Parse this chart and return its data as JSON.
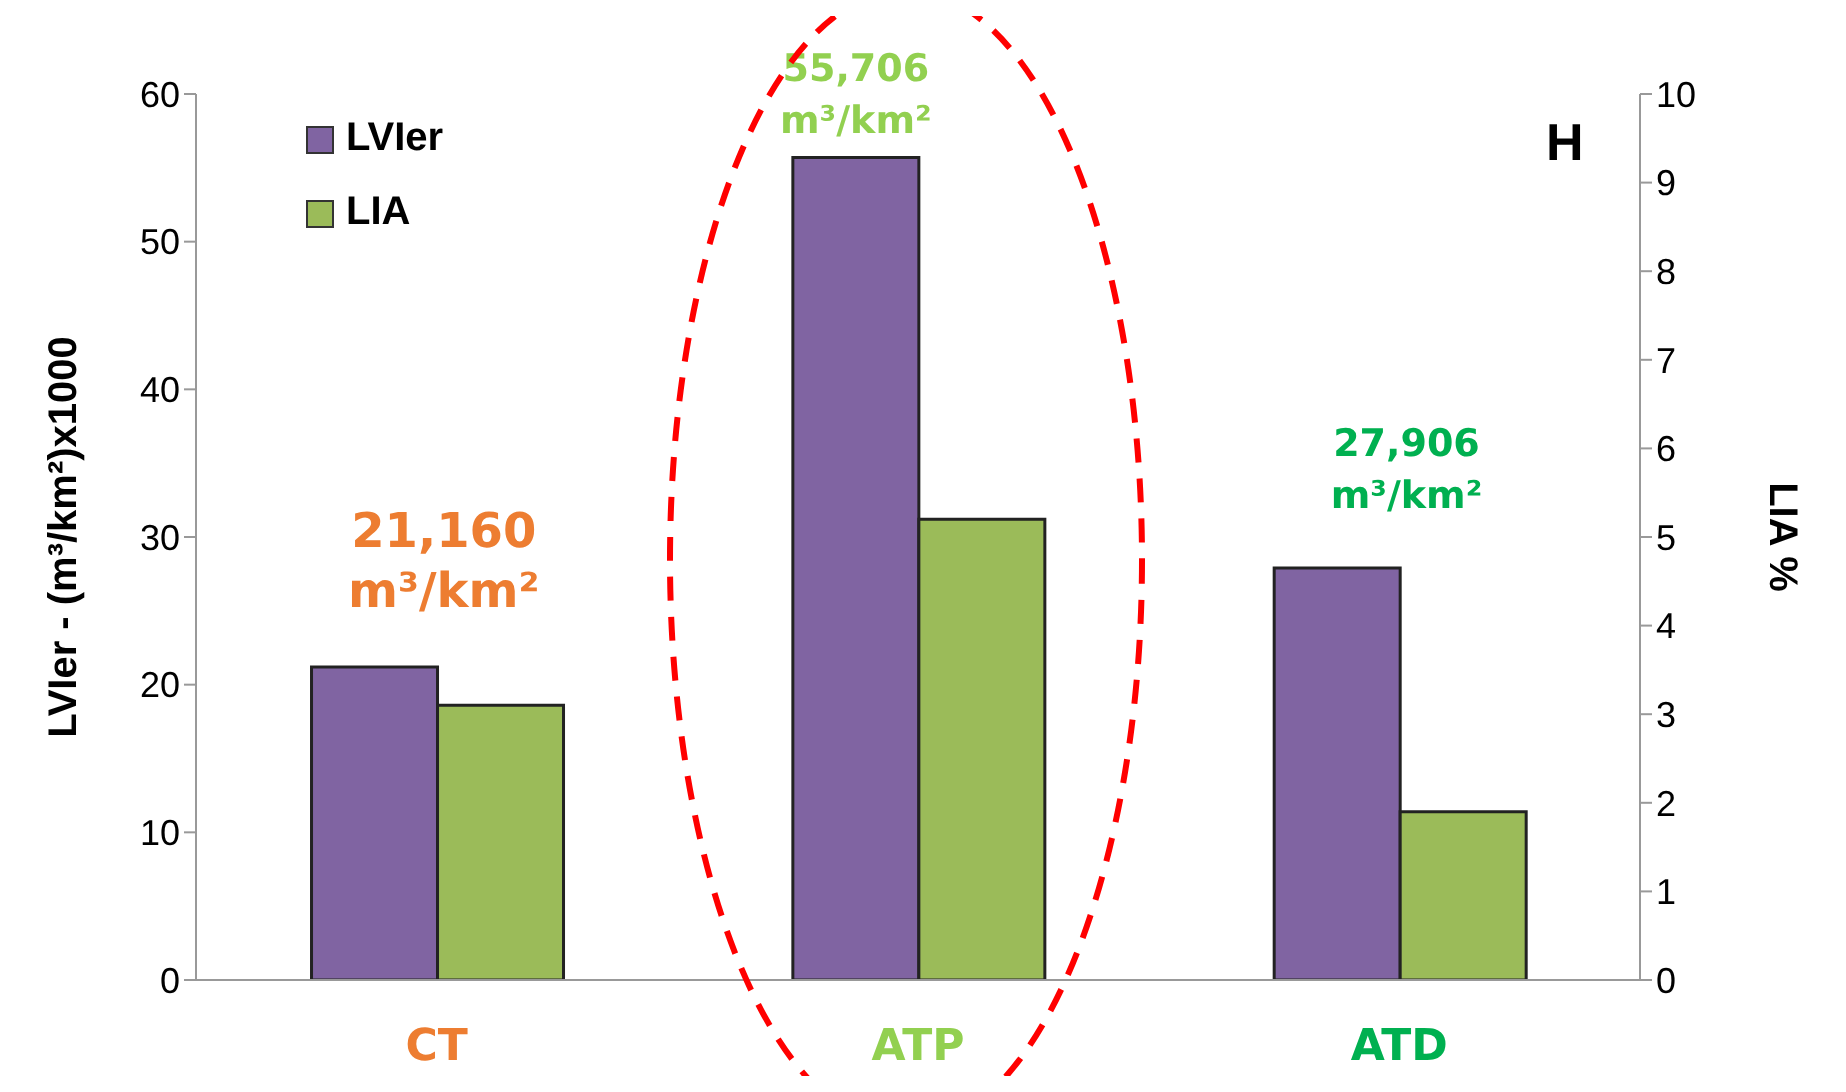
{
  "chart_data": {
    "type": "bar",
    "categories": [
      "CT",
      "ATP",
      "ATD"
    ],
    "series": [
      {
        "name": "LVIer",
        "color": "#8064a2",
        "values": [
          21.2,
          55.7,
          27.9
        ]
      },
      {
        "name": "LIA",
        "color": "#9bbb59",
        "values": [
          3.1,
          5.2,
          1.9
        ],
        "axis": "y2"
      }
    ],
    "ylabel": "LVIer - (m³/km²)x1000",
    "y2label": "LIA %",
    "ylim": [
      0,
      60
    ],
    "yticks": [
      0,
      10,
      20,
      30,
      40,
      50,
      60
    ],
    "y2lim": [
      0,
      10
    ],
    "y2ticks": [
      0,
      1,
      2,
      3,
      4,
      5,
      6,
      7,
      8,
      9,
      10
    ],
    "annotations": [
      "H",
      "21,160 m³/km²",
      "55,706 m³/km²",
      "27,906 m³/km²"
    ],
    "legend": "top left",
    "grid": false
  }
}
